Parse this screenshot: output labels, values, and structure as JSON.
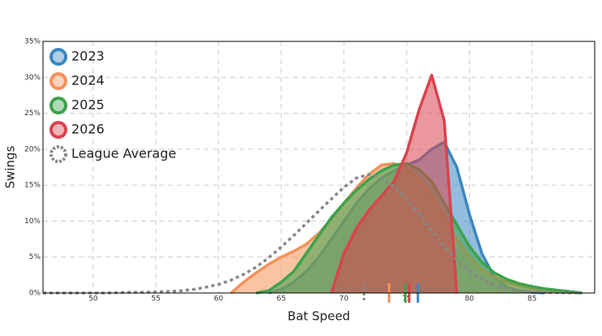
{
  "chart_data": {
    "type": "density",
    "xlabel": "Bat Speed",
    "ylabel": "Swings",
    "xlim": [
      46,
      90
    ],
    "ylim": [
      0,
      35
    ],
    "xticks": [
      50,
      55,
      60,
      65,
      70,
      75,
      80,
      85
    ],
    "yticks": [
      {
        "value": 0,
        "label": "0%"
      },
      {
        "value": 5,
        "label": "5%"
      },
      {
        "value": 10,
        "label": "10%"
      },
      {
        "value": 15,
        "label": "15%"
      },
      {
        "value": 20,
        "label": "20%"
      },
      {
        "value": 25,
        "label": "25%"
      },
      {
        "value": 30,
        "label": "30%"
      },
      {
        "value": 35,
        "label": "35%"
      }
    ],
    "grid": true,
    "legend": "upper left",
    "x": [
      46,
      47,
      48,
      49,
      50,
      51,
      52,
      53,
      54,
      55,
      56,
      57,
      58,
      59,
      60,
      61,
      62,
      63,
      64,
      65,
      66,
      67,
      68,
      69,
      70,
      71,
      72,
      73,
      74,
      75,
      76,
      77,
      78,
      79,
      80,
      81,
      82,
      83,
      84,
      85,
      86,
      87,
      88,
      89
    ],
    "series": [
      {
        "name": "2023",
        "color": "#3a87c0",
        "style": "filled",
        "mean": 75.9,
        "values": [
          null,
          null,
          null,
          null,
          null,
          null,
          null,
          null,
          null,
          null,
          null,
          null,
          null,
          null,
          null,
          null,
          null,
          null,
          0,
          0.5,
          1.5,
          3,
          5,
          7.5,
          10,
          12.5,
          14.5,
          16,
          17,
          17.8,
          18.5,
          20,
          21,
          17.5,
          11,
          5.5,
          2.2,
          0.8,
          0.3,
          0.1,
          0,
          null,
          null,
          null
        ]
      },
      {
        "name": "2024",
        "color": "#f4915a",
        "style": "filled",
        "mean": 73.6,
        "values": [
          null,
          null,
          null,
          null,
          null,
          null,
          null,
          null,
          null,
          null,
          null,
          null,
          null,
          null,
          null,
          0,
          1.5,
          2.8,
          4,
          5,
          5.8,
          6.8,
          8.3,
          10.3,
          12.5,
          14.6,
          16.5,
          17.8,
          18,
          17.3,
          15.8,
          13.5,
          10.5,
          7.5,
          5,
          3.3,
          2.2,
          1.5,
          1,
          0.7,
          0.4,
          0.2,
          0.1,
          0
        ]
      },
      {
        "name": "2025",
        "color": "#3da24b",
        "style": "filled",
        "mean": 74.9,
        "values": [
          null,
          null,
          null,
          null,
          null,
          null,
          null,
          null,
          null,
          null,
          null,
          null,
          null,
          null,
          null,
          null,
          null,
          0,
          0.3,
          1.5,
          3,
          5.5,
          8,
          10.5,
          12.5,
          14.3,
          15.8,
          17,
          17.8,
          18,
          17.2,
          15.5,
          12.5,
          9.5,
          6.5,
          4.3,
          2.8,
          1.9,
          1.3,
          0.9,
          0.6,
          0.4,
          0.2,
          0
        ]
      },
      {
        "name": "2026",
        "color": "#d9434f",
        "style": "filled",
        "mean": 75.2,
        "values": [
          null,
          null,
          null,
          null,
          null,
          null,
          null,
          null,
          null,
          null,
          null,
          null,
          null,
          null,
          null,
          null,
          null,
          null,
          null,
          null,
          null,
          null,
          null,
          0,
          5.5,
          9,
          11.5,
          13.5,
          15.5,
          19.5,
          25.5,
          30.3,
          24,
          0,
          null,
          null,
          null,
          null,
          null,
          null,
          null,
          null,
          null,
          null
        ]
      },
      {
        "name": "League Average",
        "color": "#888888",
        "style": "dotted",
        "mean": 71.6,
        "values": [
          0,
          0,
          0,
          0,
          0,
          0,
          0.05,
          0.1,
          0.1,
          0.15,
          0.2,
          0.3,
          0.5,
          0.8,
          1.2,
          1.8,
          2.6,
          3.6,
          4.9,
          6.4,
          8,
          9.7,
          11.4,
          13.1,
          14.7,
          16,
          16.5,
          16,
          14.8,
          13.1,
          11,
          8.7,
          6.5,
          4.6,
          3,
          1.9,
          1.1,
          0.6,
          0.3,
          0.15,
          0.08,
          0.04,
          0.02,
          0
        ]
      }
    ]
  }
}
